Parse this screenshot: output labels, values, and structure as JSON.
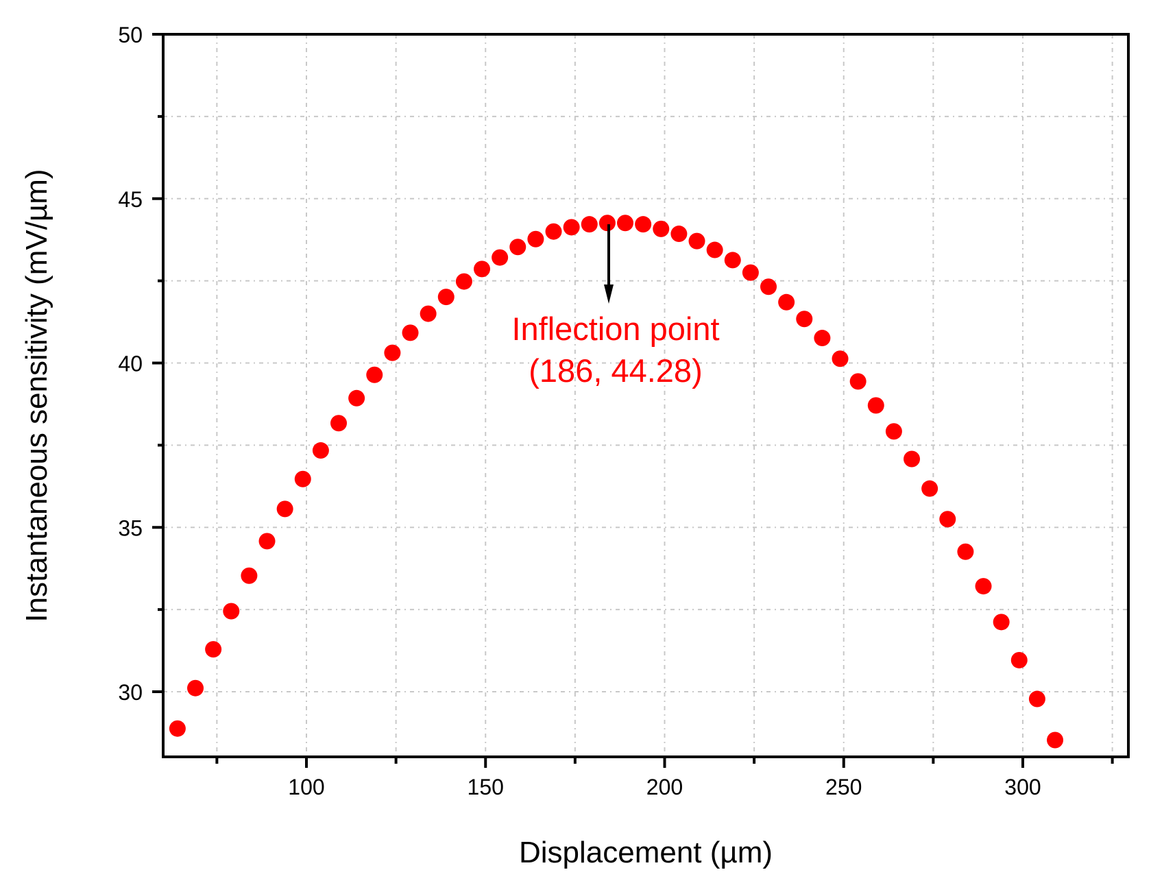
{
  "chart_data": {
    "type": "scatter",
    "title": "",
    "xlabel": "Displacement (µm)",
    "ylabel": "Instantaneous sensitivity (mV/µm)",
    "xlim": [
      60,
      325
    ],
    "ylim": [
      28,
      50
    ],
    "x_ticks": [
      100,
      150,
      200,
      250,
      300
    ],
    "x_minor_ticks": [
      75,
      125,
      175,
      225,
      275,
      325
    ],
    "y_ticks": [
      30,
      35,
      40,
      45,
      50
    ],
    "y_minor_ticks": [
      32.5,
      37.5,
      42.5,
      47.5
    ],
    "grid": true,
    "legend": null,
    "marker_color": "#ff0000",
    "series": [
      {
        "name": "Instantaneous sensitivity",
        "x": [
          64,
          69,
          74,
          79,
          84,
          89,
          94,
          99,
          104,
          109,
          114,
          119,
          124,
          129,
          134,
          139,
          144,
          149,
          154,
          159,
          164,
          169,
          174,
          179,
          184,
          189,
          194,
          199,
          204,
          209,
          214,
          219,
          224,
          229,
          234,
          239,
          244,
          249,
          254,
          259,
          264,
          269,
          274,
          279,
          284,
          289,
          294,
          299,
          304,
          309
        ],
        "y": [
          28.88,
          30.11,
          31.29,
          32.45,
          33.53,
          34.58,
          35.56,
          36.47,
          37.34,
          38.17,
          38.93,
          39.64,
          40.31,
          40.92,
          41.5,
          42.01,
          42.48,
          42.86,
          43.21,
          43.53,
          43.77,
          44.0,
          44.13,
          44.22,
          44.26,
          44.26,
          44.22,
          44.08,
          43.93,
          43.71,
          43.44,
          43.13,
          42.75,
          42.32,
          41.85,
          41.34,
          40.76,
          40.13,
          39.44,
          38.71,
          37.92,
          37.08,
          36.18,
          35.25,
          34.26,
          33.21,
          32.12,
          30.96,
          29.78,
          28.53
        ]
      }
    ],
    "annotations": [
      {
        "text_line1": "Inflection point",
        "text_line2": "(186, 44.28)",
        "point": [
          186,
          44.28
        ],
        "color": "#ff0000",
        "arrow": true
      }
    ]
  }
}
